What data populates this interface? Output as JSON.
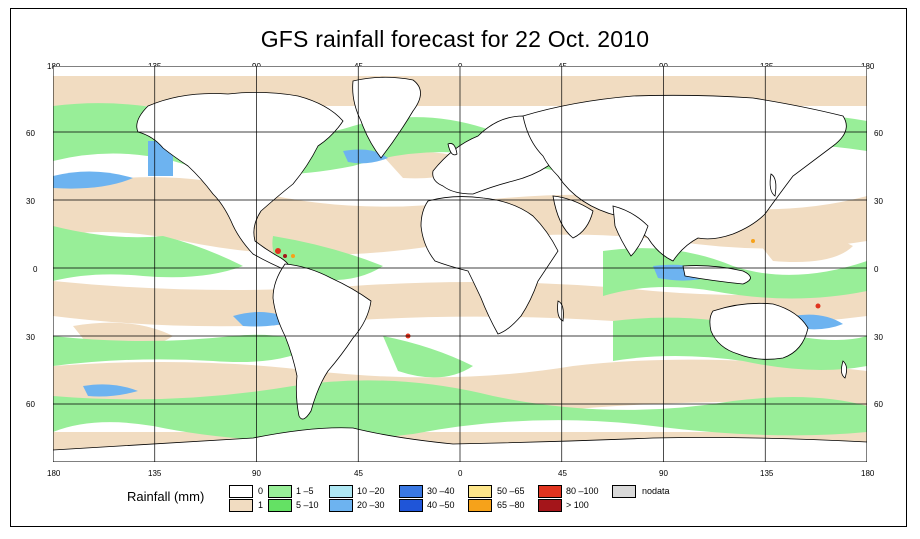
{
  "title": "GFS rainfall forecast for 22 Oct. 2010",
  "longitude_ticks": [
    "180",
    "135",
    "90",
    "45",
    "0",
    "45",
    "90",
    "135",
    "180"
  ],
  "latitude_ticks": [
    "60",
    "30",
    "0",
    "30",
    "60"
  ],
  "legend": {
    "title": "Rainfall (mm)",
    "items": [
      {
        "label": "0",
        "color": "#ffffff"
      },
      {
        "label": "1",
        "color": "#f1dcc1"
      },
      {
        "label": "1 –5",
        "color": "#98ee98"
      },
      {
        "label": "5 –10",
        "color": "#64e164"
      },
      {
        "label": "10 –20",
        "color": "#aee7f3"
      },
      {
        "label": "20 –30",
        "color": "#6db3f0"
      },
      {
        "label": "30 –40",
        "color": "#3a78e2"
      },
      {
        "label": "40 –50",
        "color": "#1f55d8"
      },
      {
        "label": "50 –65",
        "color": "#fde58a"
      },
      {
        "label": "65 –80",
        "color": "#f6a21a"
      },
      {
        "label": "80 –100",
        "color": "#e0341f"
      },
      {
        "label": "> 100",
        "color": "#a4151a"
      },
      {
        "label": "nodata",
        "color": "#d9d9d9"
      }
    ]
  }
}
